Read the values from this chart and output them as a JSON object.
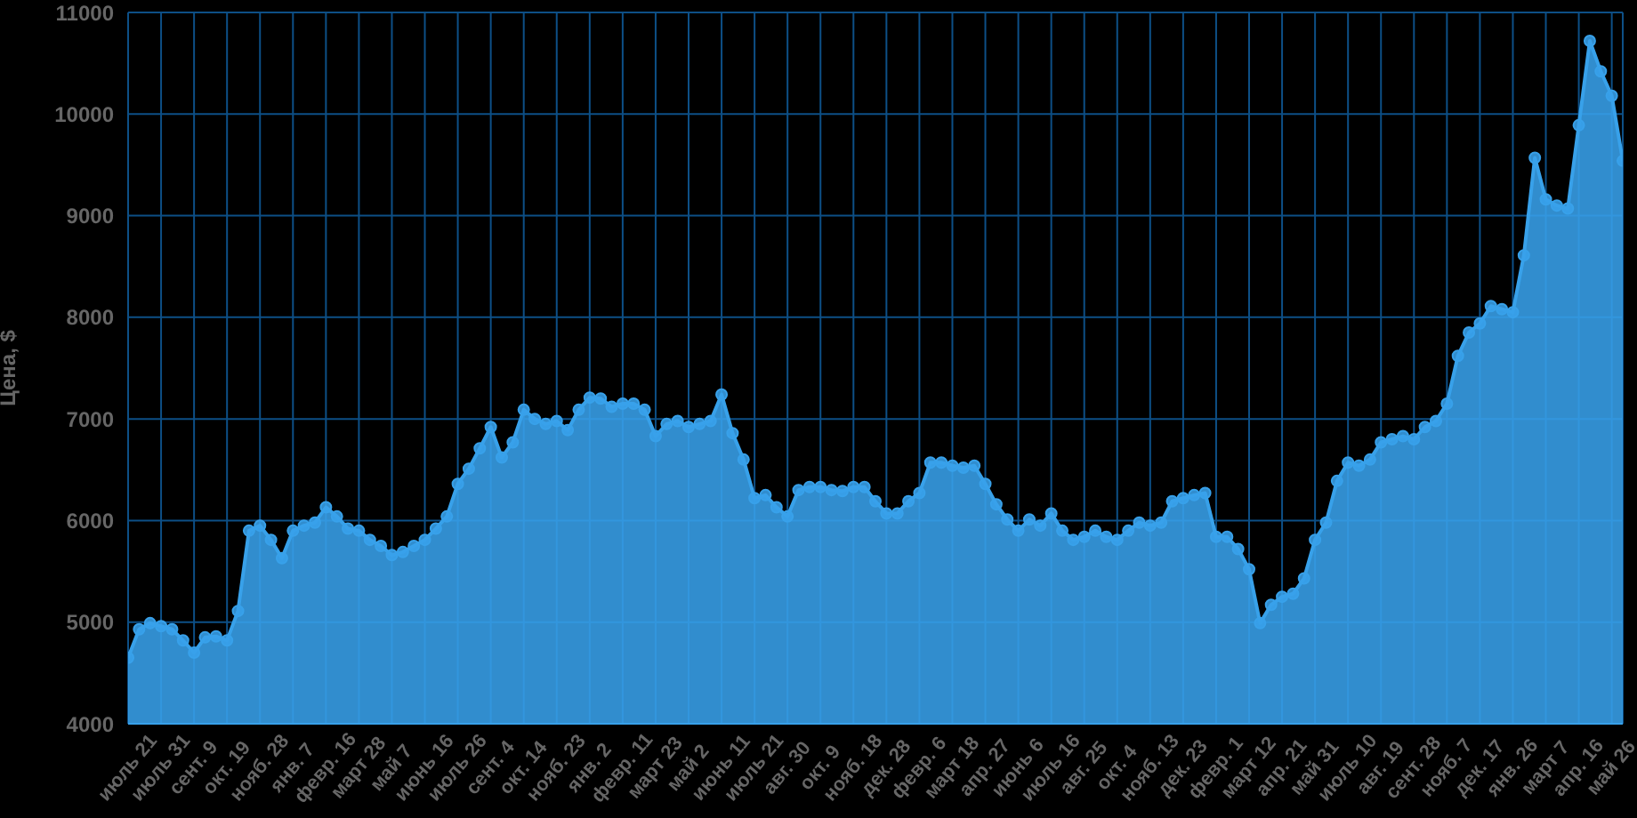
{
  "chart_data": {
    "type": "area",
    "ylabel": "Цена, $",
    "ylim": [
      4000,
      11000
    ],
    "yticks": [
      4000,
      5000,
      6000,
      7000,
      8000,
      9000,
      10000,
      11000
    ],
    "grid": true,
    "marker": "circle",
    "categories": [
      "июль 21",
      null,
      null,
      "июль 31",
      null,
      null,
      "сент. 9",
      null,
      null,
      "окт. 19",
      null,
      null,
      "нояб. 28",
      null,
      null,
      "янв. 7",
      null,
      null,
      "февр. 16",
      null,
      null,
      "март 28",
      null,
      null,
      "май 7",
      null,
      null,
      "июнь 16",
      null,
      null,
      "июль 26",
      null,
      null,
      "сент. 4",
      null,
      null,
      "окт. 14",
      null,
      null,
      "нояб. 23",
      null,
      null,
      "янв. 2",
      null,
      null,
      "февр. 11",
      null,
      null,
      "март 23",
      null,
      null,
      "май 2",
      null,
      null,
      "июнь 11",
      null,
      null,
      "июль 21",
      null,
      null,
      "авг. 30",
      null,
      null,
      "окт. 9",
      null,
      null,
      "нояб. 18",
      null,
      null,
      "дек. 28",
      null,
      null,
      "февр. 6",
      null,
      null,
      "март 18",
      null,
      null,
      "апр. 27",
      null,
      null,
      "июнь 6",
      null,
      null,
      "июль 16",
      null,
      null,
      "авг. 25",
      null,
      null,
      "окт. 4",
      null,
      null,
      "нояб. 13",
      null,
      null,
      "дек. 23",
      null,
      null,
      "февр. 1",
      null,
      null,
      "март 12",
      null,
      null,
      "апр. 21",
      null,
      null,
      "май 31",
      null,
      null,
      "июль 10",
      null,
      null,
      "авг. 19",
      null,
      null,
      "сент. 28",
      null,
      null,
      "нояб. 7",
      null,
      null,
      "дек. 17",
      null,
      null,
      "янв. 26",
      null,
      null,
      "март 7",
      null,
      null,
      "апр. 16",
      null,
      null,
      "май 26",
      null
    ],
    "series": [
      {
        "color": "#38a1ea",
        "values": [
          4650,
          4930,
          4990,
          4960,
          4930,
          4820,
          4700,
          4850,
          4860,
          4820,
          5110,
          5900,
          5950,
          5810,
          5630,
          5900,
          5950,
          5980,
          6130,
          6040,
          5920,
          5900,
          5810,
          5750,
          5660,
          5690,
          5750,
          5810,
          5920,
          6040,
          6360,
          6510,
          6710,
          6920,
          6620,
          6770,
          7090,
          7000,
          6950,
          6980,
          6890,
          7090,
          7210,
          7200,
          7120,
          7150,
          7150,
          7090,
          6830,
          6950,
          6980,
          6920,
          6950,
          6980,
          7240,
          6860,
          6600,
          6220,
          6250,
          6130,
          6040,
          6300,
          6330,
          6330,
          6300,
          6290,
          6330,
          6330,
          6190,
          6070,
          6070,
          6190,
          6270,
          6570,
          6570,
          6540,
          6520,
          6540,
          6360,
          6160,
          6010,
          5900,
          6010,
          5950,
          6070,
          5900,
          5810,
          5840,
          5900,
          5840,
          5810,
          5900,
          5980,
          5950,
          5980,
          6190,
          6220,
          6250,
          6270,
          5840,
          5840,
          5720,
          5520,
          4990,
          5170,
          5250,
          5280,
          5430,
          5810,
          5980,
          6390,
          6570,
          6540,
          6600,
          6770,
          6800,
          6830,
          6800,
          6920,
          6980,
          7150,
          7620,
          7850,
          7940,
          8110,
          8080,
          8050,
          8610,
          9570,
          9160,
          9100,
          9070,
          9890,
          10720,
          10420,
          10180,
          9540
        ]
      }
    ]
  }
}
